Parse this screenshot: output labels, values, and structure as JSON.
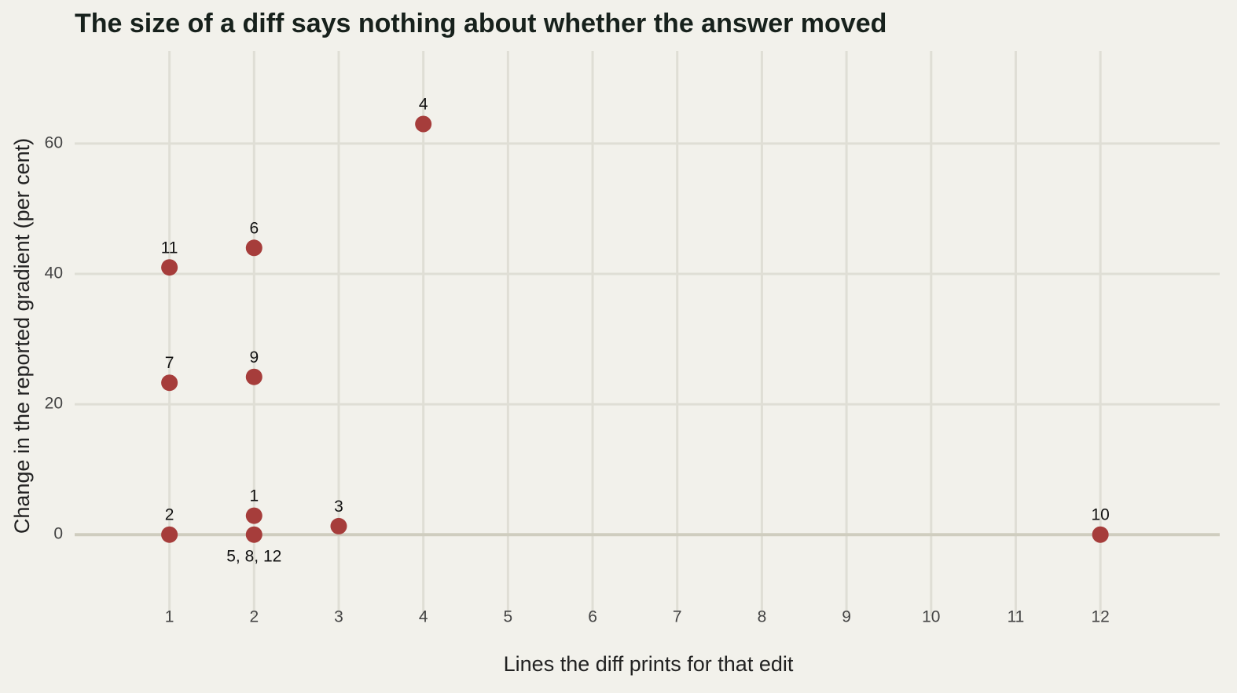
{
  "chart_data": {
    "type": "scatter",
    "title": "The size of a diff says nothing about whether the answer moved",
    "xlabel": "Lines the diff prints for that edit",
    "ylabel": "Change in the reported gradient (per cent)",
    "x": [
      4,
      2,
      1,
      2,
      1,
      2,
      3,
      1,
      2,
      12
    ],
    "y": [
      63,
      44,
      41,
      24.2,
      23.3,
      2.9,
      1.3,
      0,
      0,
      0
    ],
    "labels": [
      "4",
      "6",
      "11",
      "9",
      "7",
      "1",
      "3",
      "2",
      "5, 8, 12",
      "10"
    ],
    "label_positions": [
      "above",
      "above",
      "above",
      "above",
      "above",
      "above",
      "above",
      "above",
      "below",
      "above"
    ],
    "color": "#a63d3b",
    "xlim": [
      -0.12,
      13.41
    ],
    "ylim": [
      -12.5,
      74.2
    ],
    "xticks": [
      1,
      2,
      3,
      4,
      5,
      6,
      7,
      8,
      9,
      10,
      11,
      12
    ],
    "yticks": [
      0,
      20,
      40,
      60
    ],
    "grid": true
  }
}
